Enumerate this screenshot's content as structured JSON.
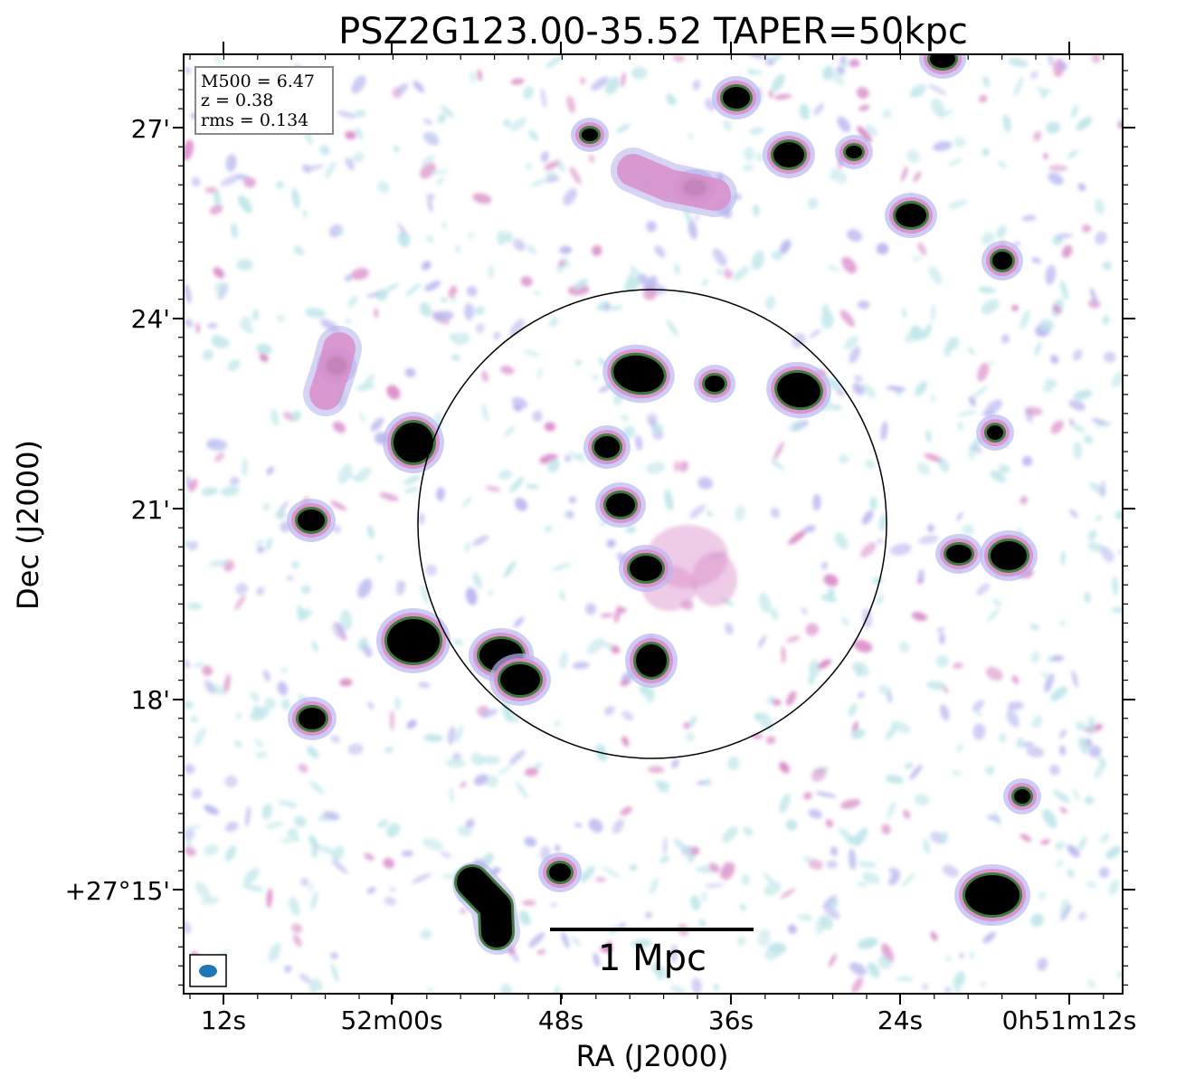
{
  "figure": {
    "title": "PSZ2G123.00-35.52 TAPER=50kpc",
    "xlabel": "RA (J2000)",
    "ylabel": "Dec (J2000)",
    "xtick_labels": [
      "12s",
      "52m00s",
      "48s",
      "36s",
      "24s",
      "0h51m12s"
    ],
    "ytick_labels": [
      "27'",
      "24'",
      "21'",
      "18'",
      "+27°15'"
    ],
    "info_box": [
      "M500 = 6.47",
      "z = 0.38",
      "rms = 0.134"
    ],
    "scale_bar_label": "1 Mpc",
    "colors": {
      "frame": "#000000",
      "circle": "#000000",
      "beam": "#1f77b4",
      "cmap_low": "#bfe6ea",
      "cmap_mid1": "#b9b7ef",
      "cmap_mid2": "#d98bc8",
      "cmap_mid3": "#3f7a3a",
      "cmap_high": "#000000"
    }
  }
}
